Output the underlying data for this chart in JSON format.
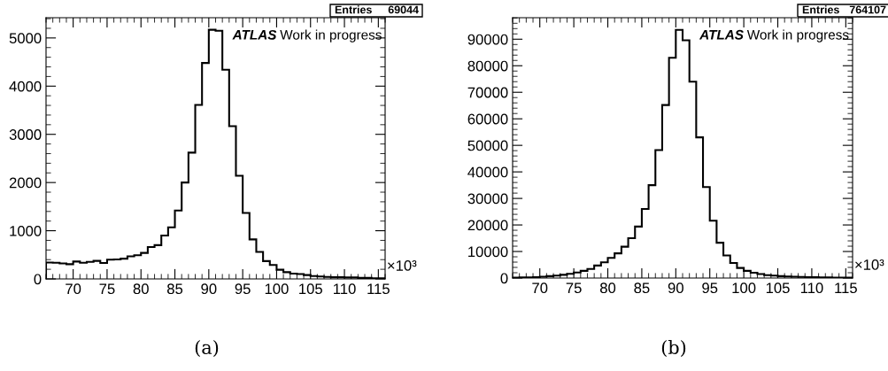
{
  "chart_data": [
    {
      "type": "histogram",
      "bins": [
        66,
        67,
        68,
        69,
        70,
        71,
        72,
        73,
        74,
        75,
        76,
        77,
        78,
        79,
        80,
        81,
        82,
        83,
        84,
        85,
        86,
        87,
        88,
        89,
        90,
        91,
        92,
        93,
        94,
        95,
        96,
        97,
        98,
        99,
        100,
        101,
        102,
        103,
        104,
        105,
        106,
        107,
        108,
        109,
        110,
        111,
        112,
        113,
        114,
        115,
        116
      ],
      "values": [
        340,
        335,
        320,
        305,
        360,
        335,
        355,
        375,
        330,
        400,
        405,
        420,
        470,
        490,
        540,
        660,
        700,
        900,
        1070,
        1420,
        2000,
        2620,
        3610,
        4480,
        5170,
        5150,
        4340,
        3170,
        2140,
        1370,
        820,
        560,
        370,
        290,
        190,
        140,
        110,
        100,
        80,
        60,
        50,
        40,
        35,
        35,
        30,
        30,
        20,
        20,
        15,
        15
      ],
      "color": "#000000",
      "xlim": [
        66,
        116
      ],
      "ylim": [
        0,
        5420
      ],
      "xticks": [
        70,
        75,
        80,
        85,
        90,
        95,
        100,
        105,
        110,
        115
      ],
      "yticks": [
        0,
        1000,
        2000,
        3000,
        4000,
        5000
      ],
      "grid": false,
      "annotations": [
        "ATLAS",
        "Work in progress",
        "Entries",
        "69044",
        "×10³",
        "(a)"
      ]
    },
    {
      "type": "histogram",
      "bins": [
        66,
        67,
        68,
        69,
        70,
        71,
        72,
        73,
        74,
        75,
        76,
        77,
        78,
        79,
        80,
        81,
        82,
        83,
        84,
        85,
        86,
        87,
        88,
        89,
        90,
        91,
        92,
        93,
        94,
        95,
        96,
        97,
        98,
        99,
        100,
        101,
        102,
        103,
        104,
        105,
        106,
        107,
        108,
        109,
        110,
        111,
        112,
        113,
        114,
        115,
        116
      ],
      "values": [
        150,
        200,
        250,
        300,
        500,
        700,
        900,
        1200,
        1600,
        2100,
        2700,
        3400,
        4700,
        5900,
        7600,
        9300,
        11800,
        15000,
        19400,
        26000,
        35000,
        48200,
        65200,
        83000,
        93500,
        89600,
        74000,
        53000,
        34300,
        21600,
        13300,
        8500,
        5700,
        3800,
        2700,
        2000,
        1500,
        1100,
        900,
        700,
        600,
        500,
        400,
        350,
        300,
        250,
        200,
        180,
        150,
        120
      ],
      "color": "#000000",
      "xlim": [
        66,
        116
      ],
      "ylim": [
        0,
        98100
      ],
      "xticks": [
        70,
        75,
        80,
        85,
        90,
        95,
        100,
        105,
        110,
        115
      ],
      "yticks": [
        0,
        10000,
        20000,
        30000,
        40000,
        50000,
        60000,
        70000,
        80000,
        90000
      ],
      "grid": false,
      "annotations": [
        "ATLAS",
        "Work in progress",
        "Entries",
        "764107",
        "×10³",
        "(b)"
      ]
    }
  ]
}
